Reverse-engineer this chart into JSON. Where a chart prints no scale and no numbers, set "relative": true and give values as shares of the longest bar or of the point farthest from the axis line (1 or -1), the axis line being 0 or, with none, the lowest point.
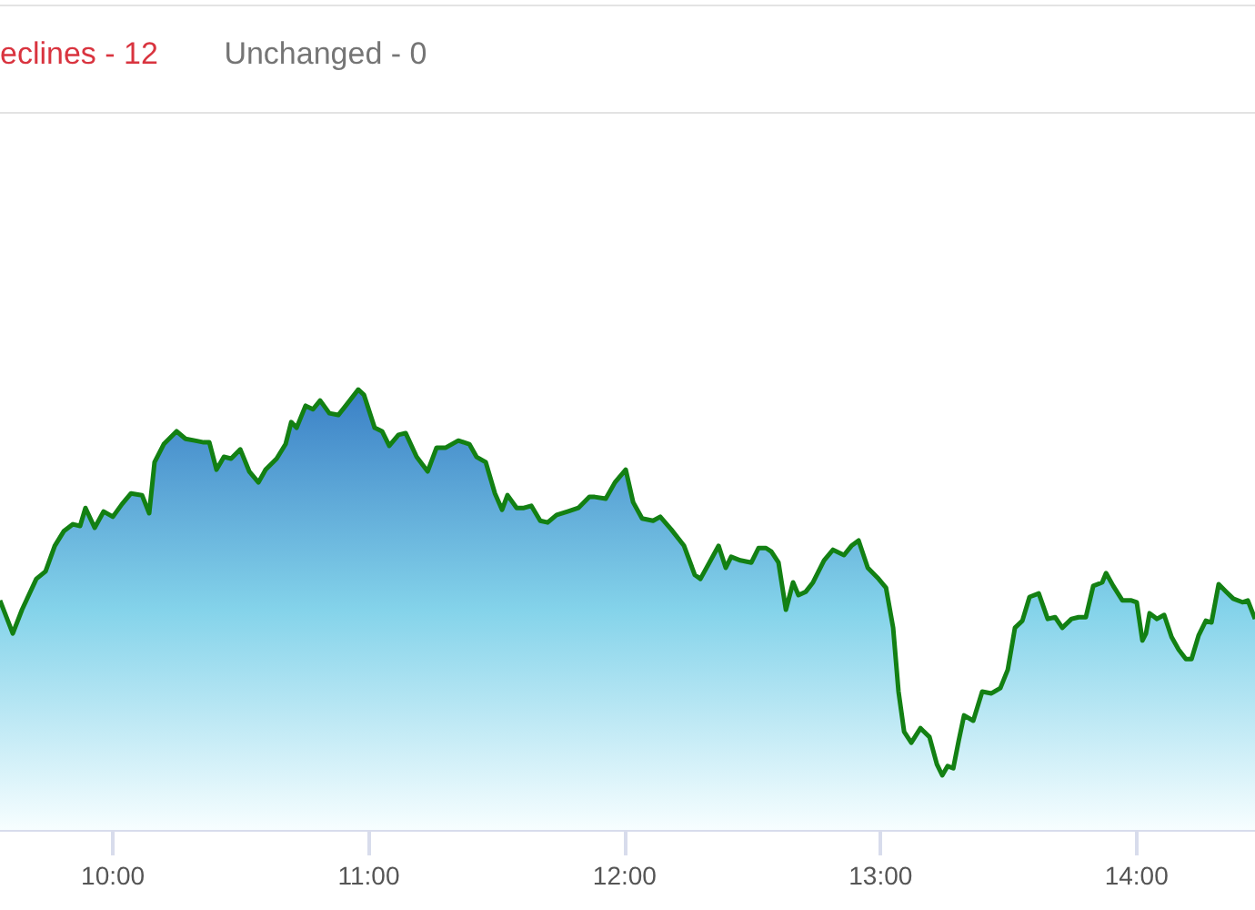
{
  "chart_data": {
    "type": "area",
    "relative": true,
    "annotations": [
      "eclines - 12",
      "Unchanged - 0"
    ],
    "xlim": [
      9.559,
      14.463
    ],
    "xticks": [
      {
        "value": 10,
        "label": "10:00"
      },
      {
        "value": 11,
        "label": "11:00"
      },
      {
        "value": 12,
        "label": "12:00"
      },
      {
        "value": 13,
        "label": "13:00"
      },
      {
        "value": 14,
        "label": "14:00"
      }
    ],
    "grid": false,
    "marker": "none",
    "line_style": "solid",
    "series": [
      {
        "color": "#138013",
        "x": [
          9.559,
          9.609,
          9.645,
          9.701,
          9.737,
          9.773,
          9.808,
          9.844,
          9.872,
          9.893,
          9.929,
          9.964,
          10.0,
          10.036,
          10.071,
          10.114,
          10.142,
          10.163,
          10.199,
          10.249,
          10.284,
          10.32,
          10.355,
          10.377,
          10.405,
          10.434,
          10.462,
          10.498,
          10.533,
          10.569,
          10.597,
          10.64,
          10.675,
          10.697,
          10.718,
          10.753,
          10.782,
          10.81,
          10.846,
          10.881,
          10.91,
          10.959,
          10.981,
          11.023,
          11.052,
          11.08,
          11.116,
          11.144,
          11.187,
          11.23,
          11.265,
          11.301,
          11.35,
          11.393,
          11.421,
          11.457,
          11.493,
          11.521,
          11.542,
          11.578,
          11.606,
          11.635,
          11.67,
          11.699,
          11.734,
          11.777,
          11.819,
          11.862,
          11.883,
          11.926,
          11.962,
          12.004,
          12.033,
          12.068,
          12.111,
          12.139,
          12.182,
          12.232,
          12.274,
          12.296,
          12.331,
          12.367,
          12.395,
          12.416,
          12.452,
          12.495,
          12.523,
          12.552,
          12.573,
          12.601,
          12.63,
          12.658,
          12.679,
          12.708,
          12.736,
          12.779,
          12.814,
          12.857,
          12.886,
          12.914,
          12.95,
          12.992,
          13.021,
          13.049,
          13.07,
          13.092,
          13.12,
          13.156,
          13.191,
          13.22,
          13.241,
          13.262,
          13.284,
          13.305,
          13.326,
          13.362,
          13.397,
          13.433,
          13.468,
          13.497,
          13.525,
          13.554,
          13.582,
          13.618,
          13.653,
          13.682,
          13.71,
          13.746,
          13.774,
          13.802,
          13.831,
          13.866,
          13.881,
          13.909,
          13.945,
          13.98,
          14.001,
          14.023,
          14.037,
          14.051,
          14.08,
          14.108,
          14.137,
          14.165,
          14.193,
          14.215,
          14.243,
          14.271,
          14.293,
          14.321,
          14.35,
          14.378,
          14.414,
          14.435,
          14.463
        ],
        "values": [
          0.521,
          0.446,
          0.5,
          0.57,
          0.587,
          0.645,
          0.678,
          0.694,
          0.69,
          0.731,
          0.686,
          0.723,
          0.711,
          0.74,
          0.764,
          0.76,
          0.719,
          0.835,
          0.876,
          0.905,
          0.888,
          0.884,
          0.88,
          0.88,
          0.818,
          0.847,
          0.843,
          0.864,
          0.814,
          0.789,
          0.818,
          0.843,
          0.876,
          0.926,
          0.913,
          0.963,
          0.955,
          0.975,
          0.946,
          0.942,
          0.963,
          1,
          0.988,
          0.913,
          0.905,
          0.872,
          0.897,
          0.901,
          0.847,
          0.814,
          0.868,
          0.868,
          0.884,
          0.876,
          0.847,
          0.835,
          0.764,
          0.727,
          0.76,
          0.731,
          0.731,
          0.736,
          0.702,
          0.698,
          0.715,
          0.723,
          0.731,
          0.756,
          0.756,
          0.752,
          0.789,
          0.818,
          0.744,
          0.707,
          0.702,
          0.711,
          0.682,
          0.645,
          0.579,
          0.57,
          0.607,
          0.645,
          0.595,
          0.62,
          0.612,
          0.607,
          0.64,
          0.64,
          0.632,
          0.607,
          0.5,
          0.562,
          0.533,
          0.541,
          0.562,
          0.612,
          0.636,
          0.624,
          0.645,
          0.657,
          0.595,
          0.57,
          0.55,
          0.459,
          0.314,
          0.223,
          0.198,
          0.231,
          0.211,
          0.149,
          0.124,
          0.145,
          0.14,
          0.202,
          0.26,
          0.248,
          0.314,
          0.31,
          0.322,
          0.364,
          0.459,
          0.475,
          0.529,
          0.537,
          0.479,
          0.483,
          0.459,
          0.479,
          0.483,
          0.483,
          0.554,
          0.562,
          0.583,
          0.554,
          0.521,
          0.521,
          0.517,
          0.43,
          0.446,
          0.492,
          0.479,
          0.488,
          0.438,
          0.409,
          0.388,
          0.388,
          0.442,
          0.475,
          0.471,
          0.558,
          0.541,
          0.525,
          0.517,
          0.521,
          0.479
        ]
      }
    ]
  }
}
